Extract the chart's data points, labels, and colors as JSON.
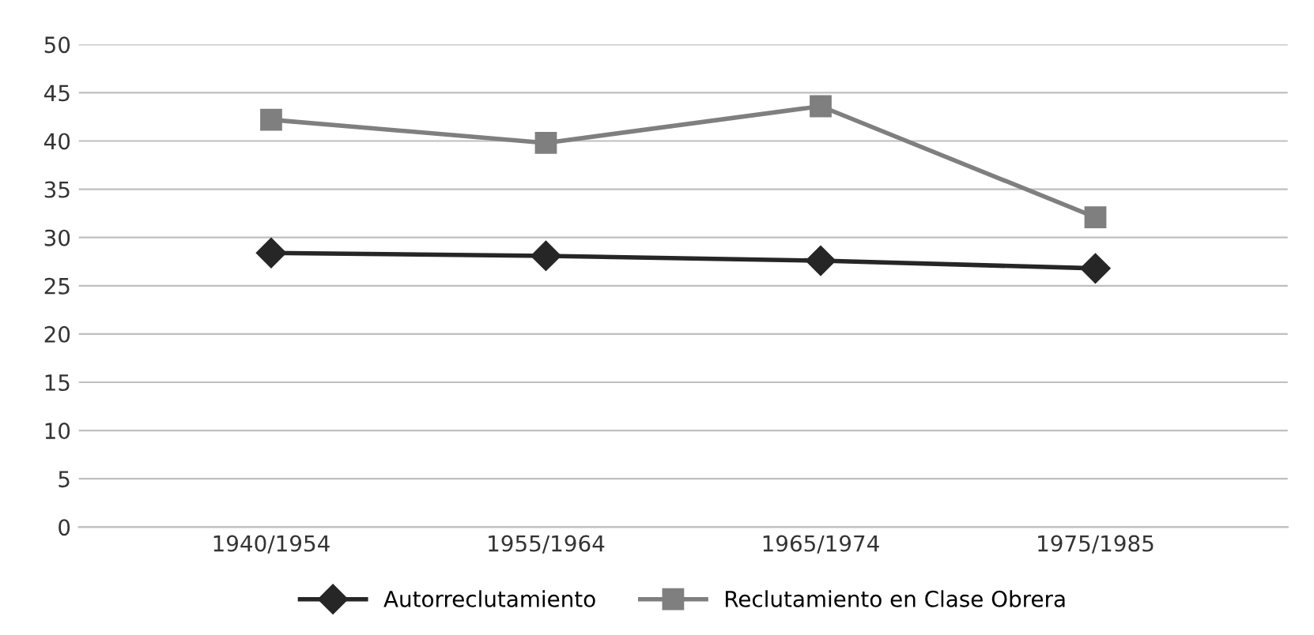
{
  "chart_data": {
    "type": "line",
    "categories": [
      "1940/1954",
      "1955/1964",
      "1965/1974",
      "1975/1985"
    ],
    "series": [
      {
        "name": "Autorreclutamiento",
        "color": "#262626",
        "values": [
          28.4,
          28.1,
          27.6,
          26.8
        ],
        "marker": "diamond"
      },
      {
        "name": "Reclutamiento en Clase Obrera",
        "color": "#7f7f7f",
        "values": [
          42.2,
          39.8,
          43.6,
          32.1
        ],
        "marker": "square"
      }
    ],
    "ylim": [
      0,
      50
    ],
    "yticks": [
      0,
      5,
      10,
      15,
      20,
      25,
      30,
      35,
      40,
      45,
      50
    ],
    "grid": "y",
    "legend": "bottom",
    "line_style": "solid"
  }
}
